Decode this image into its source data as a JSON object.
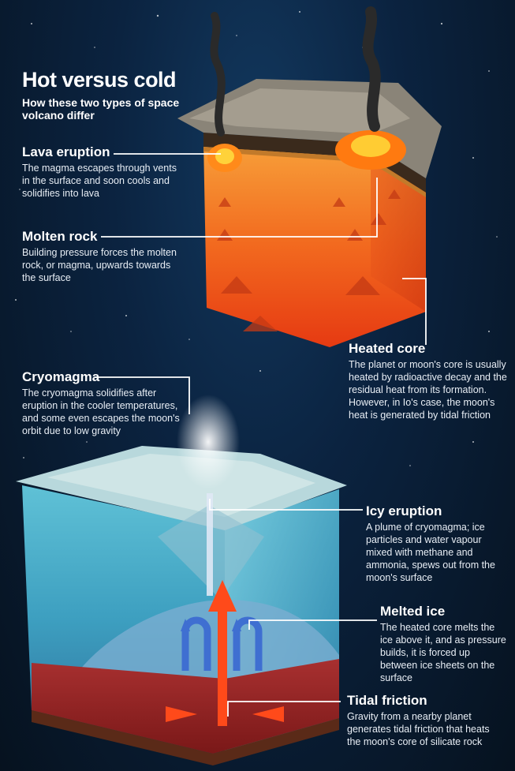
{
  "title": "Hot versus cold",
  "subtitle": "How these two types of space volcano differ",
  "labels": {
    "lava_eruption": {
      "heading": "Lava eruption",
      "text": "The magma escapes through vents in the surface and soon cools and solidifies into lava"
    },
    "molten_rock": {
      "heading": "Molten rock",
      "text": "Building pressure forces the molten rock, or magma, upwards towards the surface"
    },
    "heated_core": {
      "heading": "Heated core",
      "text": "The planet or moon's core is usually heated by radioactive decay and the residual heat from its formation. However, in Io's case, the moon's heat is generated by tidal friction"
    },
    "cryomagma": {
      "heading": "Cryomagma",
      "text": "The cryomagma solidifies after eruption in the cooler temperatures, and some even escapes the moon's orbit due to low gravity"
    },
    "icy_eruption": {
      "heading": "Icy eruption",
      "text": "A plume of cryomagma; ice particles and water vapour mixed with methane and ammonia, spews out from the moon's surface"
    },
    "melted_ice": {
      "heading": "Melted ice",
      "text": "The heated core melts the ice above it, and as pressure builds, it is forced up between ice sheets on the surface"
    },
    "tidal_friction": {
      "heading": "Tidal friction",
      "text": "Gravity from a nearby planet generates tidal friction that heats the moon's core of silicate rock"
    }
  }
}
